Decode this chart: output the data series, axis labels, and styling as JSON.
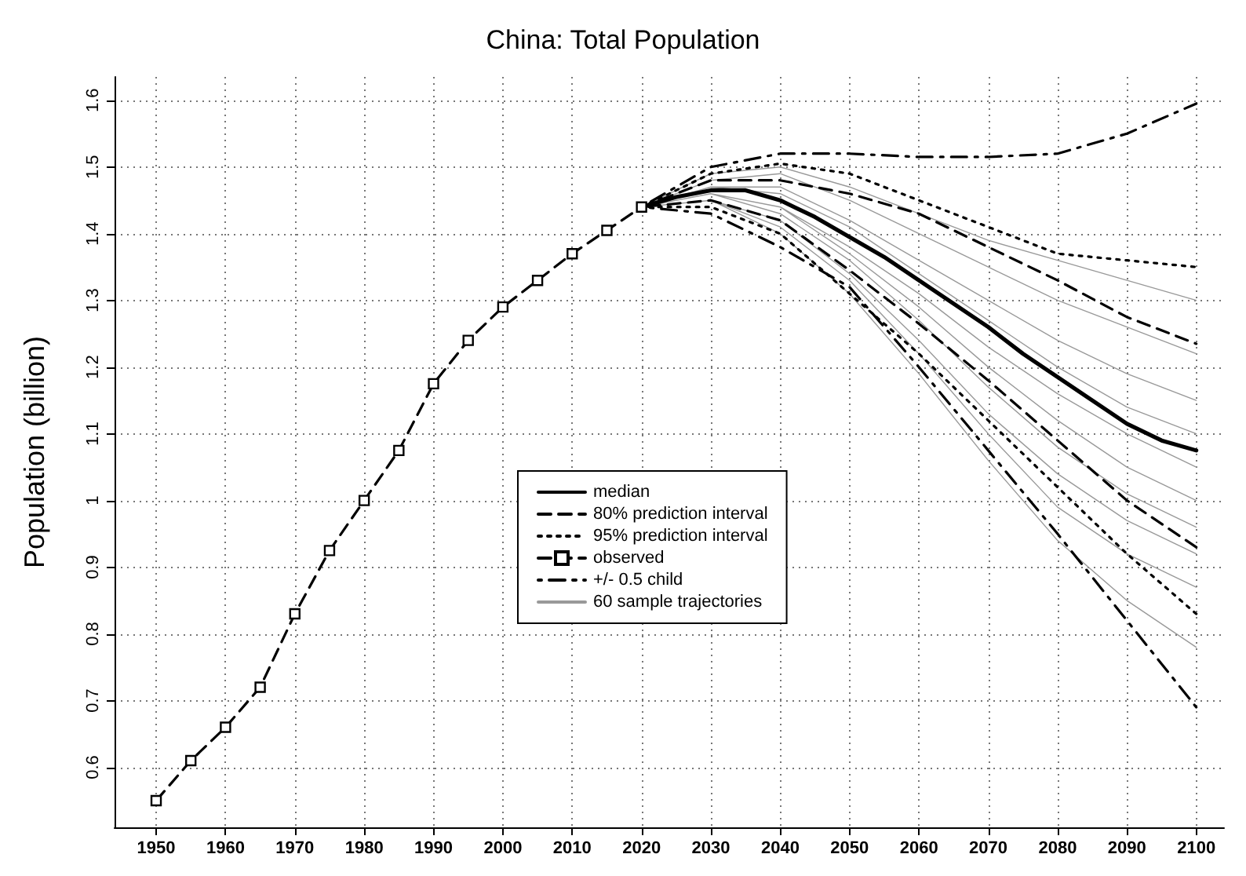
{
  "chart_data": {
    "type": "line",
    "title": "China: Total Population",
    "ylabel": "Population (billion)",
    "xlim": [
      1944,
      2104
    ],
    "xticks": [
      1950,
      1960,
      1970,
      1980,
      1990,
      2000,
      2010,
      2020,
      2030,
      2040,
      2050,
      2060,
      2070,
      2080,
      2090,
      2100
    ],
    "ylim": [
      0.51,
      1.635
    ],
    "yticks": [
      0.6,
      0.7,
      0.8,
      0.9,
      1,
      1.1,
      1.2,
      1.3,
      1.4,
      1.5,
      1.6
    ],
    "grid": true,
    "legend": "center",
    "series": [
      {
        "name": "median",
        "color": "#000000",
        "line_style": "solid",
        "x": [
          2020,
          2025,
          2030,
          2035,
          2040,
          2045,
          2050,
          2055,
          2060,
          2065,
          2070,
          2075,
          2080,
          2085,
          2090,
          2095,
          2100
        ],
        "values": [
          1.44,
          1.455,
          1.465,
          1.465,
          1.45,
          1.425,
          1.395,
          1.365,
          1.33,
          1.295,
          1.26,
          1.22,
          1.185,
          1.15,
          1.115,
          1.09,
          1.075
        ]
      },
      {
        "name": "80% prediction interval",
        "color": "#000000",
        "line_style": "dashed",
        "x": [
          2020,
          2030,
          2040,
          2050,
          2060,
          2070,
          2080,
          2090,
          2100,
          null,
          2100,
          2090,
          2080,
          2070,
          2060,
          2050,
          2040,
          2030,
          2020
        ],
        "values": [
          1.44,
          1.48,
          1.48,
          1.46,
          1.43,
          1.38,
          1.33,
          1.275,
          1.235,
          null,
          0.93,
          1.0,
          1.09,
          1.18,
          1.265,
          1.345,
          1.42,
          1.45,
          1.44
        ]
      },
      {
        "name": "95% prediction interval",
        "color": "#000000",
        "line_style": "dotted",
        "x": [
          2020,
          2030,
          2040,
          2050,
          2060,
          2070,
          2080,
          2090,
          2100,
          null,
          2100,
          2090,
          2080,
          2070,
          2060,
          2050,
          2040,
          2030,
          2020
        ],
        "values": [
          1.44,
          1.49,
          1.505,
          1.49,
          1.45,
          1.41,
          1.37,
          1.36,
          1.35,
          null,
          0.83,
          0.92,
          1.02,
          1.12,
          1.22,
          1.31,
          1.4,
          1.44,
          1.44
        ]
      },
      {
        "name": "observed",
        "color": "#000000",
        "line_style": "dashed",
        "marker": "square",
        "x": [
          1950,
          1955,
          1960,
          1965,
          1970,
          1975,
          1980,
          1985,
          1990,
          1995,
          2000,
          2005,
          2010,
          2015,
          2020
        ],
        "values": [
          0.55,
          0.61,
          0.66,
          0.72,
          0.83,
          0.925,
          1.0,
          1.075,
          1.175,
          1.24,
          1.29,
          1.33,
          1.37,
          1.405,
          1.44
        ]
      },
      {
        "name": "+/- 0.5 child",
        "color": "#000000",
        "line_style": "dashdot",
        "x": [
          2020,
          2030,
          2040,
          2050,
          2060,
          2070,
          2080,
          2090,
          2100,
          null,
          2100,
          2090,
          2080,
          2070,
          2060,
          2050,
          2040,
          2030,
          2020
        ],
        "values": [
          1.44,
          1.5,
          1.52,
          1.52,
          1.515,
          1.515,
          1.52,
          1.55,
          1.595,
          null,
          0.69,
          0.82,
          0.95,
          1.075,
          1.2,
          1.32,
          1.38,
          1.43,
          1.44
        ]
      },
      {
        "name": "60 sample trajectories",
        "color": "#999999",
        "line_style": "solid",
        "x": [
          2020,
          2030,
          2040,
          2050,
          2060,
          2070,
          2080,
          2090,
          2100,
          null,
          2100,
          2090,
          2080,
          2070,
          2060,
          2050,
          2040,
          2030,
          2020,
          null,
          2020,
          2030,
          2040,
          2050,
          2060,
          2070,
          2080,
          2090,
          2100,
          null,
          2100,
          2090,
          2080,
          2070,
          2060,
          2050,
          2040,
          2030,
          2020,
          null,
          2020,
          2030,
          2040,
          2050,
          2060,
          2070,
          2080,
          2090,
          2100,
          null,
          2100,
          2090,
          2080,
          2070,
          2060,
          2050,
          2040,
          2030,
          2020,
          null,
          2020,
          2030,
          2040,
          2050,
          2060,
          2070,
          2080,
          2090,
          2100,
          null,
          2100,
          2090,
          2080,
          2070,
          2060,
          2050,
          2040,
          2030,
          2020,
          null,
          2020,
          2030,
          2040,
          2050,
          2060,
          2070,
          2080,
          2090,
          2100,
          null,
          2100,
          2090,
          2080,
          2070,
          2060,
          2050,
          2040,
          2030,
          2020
        ],
        "values": [
          1.44,
          1.49,
          1.5,
          1.47,
          1.43,
          1.39,
          1.36,
          1.33,
          1.3,
          null,
          1.22,
          1.26,
          1.3,
          1.35,
          1.4,
          1.45,
          1.49,
          1.48,
          1.44,
          null,
          1.44,
          1.47,
          1.47,
          1.42,
          1.36,
          1.3,
          1.24,
          1.19,
          1.15,
          null,
          1.1,
          1.14,
          1.2,
          1.27,
          1.34,
          1.41,
          1.46,
          1.47,
          1.44,
          null,
          1.44,
          1.46,
          1.44,
          1.38,
          1.31,
          1.23,
          1.16,
          1.1,
          1.05,
          null,
          1.0,
          1.05,
          1.12,
          1.2,
          1.29,
          1.37,
          1.44,
          1.46,
          1.44,
          null,
          1.44,
          1.46,
          1.43,
          1.36,
          1.27,
          1.17,
          1.08,
          1.01,
          0.96,
          null,
          0.92,
          0.97,
          1.04,
          1.13,
          1.24,
          1.34,
          1.42,
          1.45,
          1.44,
          null,
          1.44,
          1.45,
          1.41,
          1.33,
          1.22,
          1.1,
          0.99,
          0.92,
          0.87,
          null,
          0.78,
          0.85,
          0.94,
          1.06,
          1.19,
          1.31,
          1.4,
          1.45,
          1.44
        ]
      }
    ]
  }
}
